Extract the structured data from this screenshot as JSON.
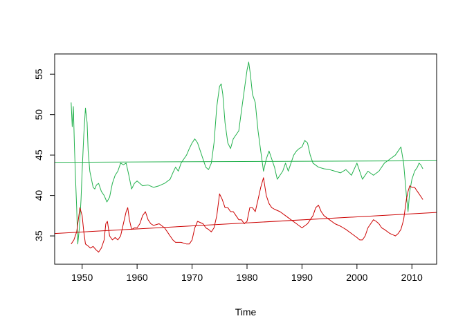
{
  "chart_data": {
    "type": "line",
    "title": "",
    "xlabel": "Time",
    "ylabel": "",
    "xlim": [
      1945,
      2014.5
    ],
    "ylim": [
      31.5,
      57.5
    ],
    "x_ticks": [
      1950,
      1960,
      1970,
      1980,
      1990,
      2000,
      2010
    ],
    "y_ticks": [
      35,
      40,
      45,
      50,
      55
    ],
    "grid": false,
    "legend": "none",
    "series": [
      {
        "color": "#22b14c",
        "x": [
          1948.0,
          1948.2,
          1948.4,
          1948.6,
          1948.8,
          1949.0,
          1949.2,
          1949.5,
          1949.8,
          1950.0,
          1950.3,
          1950.6,
          1950.9,
          1951.1,
          1951.4,
          1951.7,
          1952.0,
          1952.3,
          1952.6,
          1953.0,
          1953.5,
          1954.0,
          1954.5,
          1955.0,
          1955.5,
          1956.0,
          1956.5,
          1957.0,
          1957.5,
          1958.0,
          1958.5,
          1959.0,
          1959.5,
          1960.0,
          1960.5,
          1961.0,
          1962.0,
          1963.0,
          1964.0,
          1965.0,
          1966.0,
          1966.5,
          1967.0,
          1967.5,
          1968.0,
          1968.5,
          1969.0,
          1969.5,
          1970.0,
          1970.5,
          1971.0,
          1971.5,
          1972.0,
          1972.5,
          1973.0,
          1973.5,
          1974.0,
          1974.5,
          1975.0,
          1975.3,
          1975.6,
          1976.0,
          1976.5,
          1977.0,
          1977.5,
          1978.0,
          1978.5,
          1979.0,
          1979.5,
          1980.0,
          1980.3,
          1980.6,
          1981.0,
          1981.5,
          1982.0,
          1982.5,
          1983.0,
          1983.5,
          1984.0,
          1984.5,
          1985.0,
          1985.5,
          1986.0,
          1986.5,
          1987.0,
          1987.5,
          1988.0,
          1988.5,
          1989.0,
          1989.5,
          1990.0,
          1990.5,
          1991.0,
          1991.5,
          1992.0,
          1993.0,
          1994.0,
          1995.0,
          1996.0,
          1997.0,
          1998.0,
          1999.0,
          2000.0,
          2001.0,
          2002.0,
          2003.0,
          2004.0,
          2005.0,
          2006.0,
          2007.0,
          2007.5,
          2008.0,
          2008.5,
          2009.0,
          2009.3,
          2009.6,
          2010.0,
          2010.5,
          2011.0,
          2011.3,
          2011.6,
          2012.0
        ],
        "y": [
          51.5,
          48.5,
          51.0,
          46.0,
          42.0,
          38.5,
          34.0,
          36.0,
          39.5,
          43.0,
          47.5,
          50.8,
          49.0,
          45.5,
          43.0,
          42.0,
          41.0,
          40.8,
          41.3,
          41.5,
          40.5,
          40.0,
          39.2,
          39.8,
          41.5,
          42.5,
          43.0,
          44.0,
          43.8,
          44.0,
          42.5,
          40.8,
          41.5,
          41.8,
          41.5,
          41.2,
          41.3,
          41.0,
          41.2,
          41.5,
          42.0,
          42.8,
          43.5,
          43.0,
          44.0,
          44.5,
          45.0,
          45.8,
          46.5,
          47.0,
          46.5,
          45.5,
          44.5,
          43.5,
          43.2,
          44.0,
          46.5,
          51.0,
          53.5,
          53.8,
          52.5,
          49.0,
          46.5,
          45.8,
          47.0,
          47.5,
          48.0,
          50.5,
          53.0,
          55.5,
          56.5,
          55.0,
          52.5,
          51.5,
          48.0,
          45.5,
          43.0,
          44.5,
          45.5,
          44.5,
          43.5,
          42.0,
          42.5,
          43.0,
          44.0,
          43.0,
          44.0,
          45.0,
          45.5,
          45.8,
          46.0,
          46.8,
          46.5,
          45.0,
          44.0,
          43.5,
          43.3,
          43.2,
          43.0,
          42.8,
          43.2,
          42.5,
          44.0,
          42.0,
          43.0,
          42.5,
          43.0,
          44.0,
          44.5,
          45.0,
          45.5,
          46.0,
          44.0,
          40.0,
          38.0,
          40.5,
          42.0,
          43.0,
          43.5,
          44.0,
          43.8,
          43.3
        ],
        "trend": {
          "x": [
            1945,
            2014.5
          ],
          "y": [
            44.1,
            44.3
          ]
        }
      },
      {
        "color": "#cc0000",
        "x": [
          1948.0,
          1948.5,
          1949.0,
          1949.3,
          1949.6,
          1950.0,
          1950.3,
          1950.6,
          1951.0,
          1951.5,
          1952.0,
          1952.5,
          1953.0,
          1953.5,
          1954.0,
          1954.3,
          1954.6,
          1955.0,
          1955.5,
          1956.0,
          1956.5,
          1957.0,
          1957.5,
          1958.0,
          1958.3,
          1958.6,
          1959.0,
          1959.5,
          1960.0,
          1960.5,
          1961.0,
          1961.5,
          1962.0,
          1962.5,
          1963.0,
          1964.0,
          1965.0,
          1965.5,
          1966.0,
          1966.5,
          1967.0,
          1968.0,
          1969.0,
          1969.5,
          1970.0,
          1970.5,
          1971.0,
          1972.0,
          1972.5,
          1973.0,
          1973.5,
          1974.0,
          1974.5,
          1975.0,
          1975.5,
          1976.0,
          1976.5,
          1977.0,
          1977.5,
          1978.0,
          1978.5,
          1979.0,
          1979.5,
          1980.0,
          1980.5,
          1981.0,
          1981.5,
          1982.0,
          1982.5,
          1983.0,
          1983.5,
          1984.0,
          1984.5,
          1985.0,
          1986.0,
          1987.0,
          1988.0,
          1989.0,
          1990.0,
          1991.0,
          1992.0,
          1992.5,
          1993.0,
          1993.5,
          1994.0,
          1995.0,
          1996.0,
          1997.0,
          1998.0,
          1999.0,
          2000.0,
          2000.5,
          2001.0,
          2001.5,
          2002.0,
          2002.5,
          2003.0,
          2003.5,
          2004.0,
          2004.5,
          2005.0,
          2006.0,
          2007.0,
          2007.5,
          2008.0,
          2008.5,
          2009.0,
          2009.3,
          2009.6,
          2010.0,
          2010.5,
          2011.0,
          2011.5,
          2012.0
        ],
        "y": [
          34.0,
          34.5,
          35.5,
          37.0,
          38.5,
          37.5,
          35.5,
          34.0,
          33.8,
          33.5,
          33.7,
          33.3,
          33.0,
          33.5,
          34.5,
          36.5,
          36.8,
          35.0,
          34.5,
          34.8,
          34.5,
          35.0,
          36.5,
          38.0,
          38.5,
          37.0,
          35.8,
          36.0,
          36.0,
          36.5,
          37.5,
          38.0,
          37.0,
          36.5,
          36.3,
          36.5,
          36.0,
          35.5,
          35.0,
          34.5,
          34.2,
          34.2,
          34.0,
          34.0,
          34.5,
          36.0,
          36.8,
          36.5,
          36.0,
          35.8,
          35.5,
          36.0,
          37.5,
          40.2,
          39.5,
          38.5,
          38.5,
          38.0,
          38.0,
          37.5,
          37.0,
          37.0,
          36.5,
          36.8,
          38.5,
          38.5,
          38.0,
          39.5,
          41.0,
          42.2,
          40.0,
          39.0,
          38.5,
          38.3,
          38.0,
          37.5,
          37.0,
          36.5,
          36.0,
          36.5,
          37.5,
          38.5,
          38.8,
          38.0,
          37.5,
          37.0,
          36.5,
          36.2,
          35.8,
          35.3,
          34.8,
          34.5,
          34.5,
          35.0,
          36.0,
          36.5,
          37.0,
          36.8,
          36.5,
          36.0,
          35.8,
          35.3,
          35.0,
          35.3,
          35.8,
          37.0,
          39.5,
          40.5,
          41.2,
          41.0,
          41.0,
          40.5,
          40.0,
          39.5
        ],
        "trend": {
          "x": [
            1945,
            2014.5
          ],
          "y": [
            35.3,
            37.9
          ]
        }
      }
    ]
  }
}
